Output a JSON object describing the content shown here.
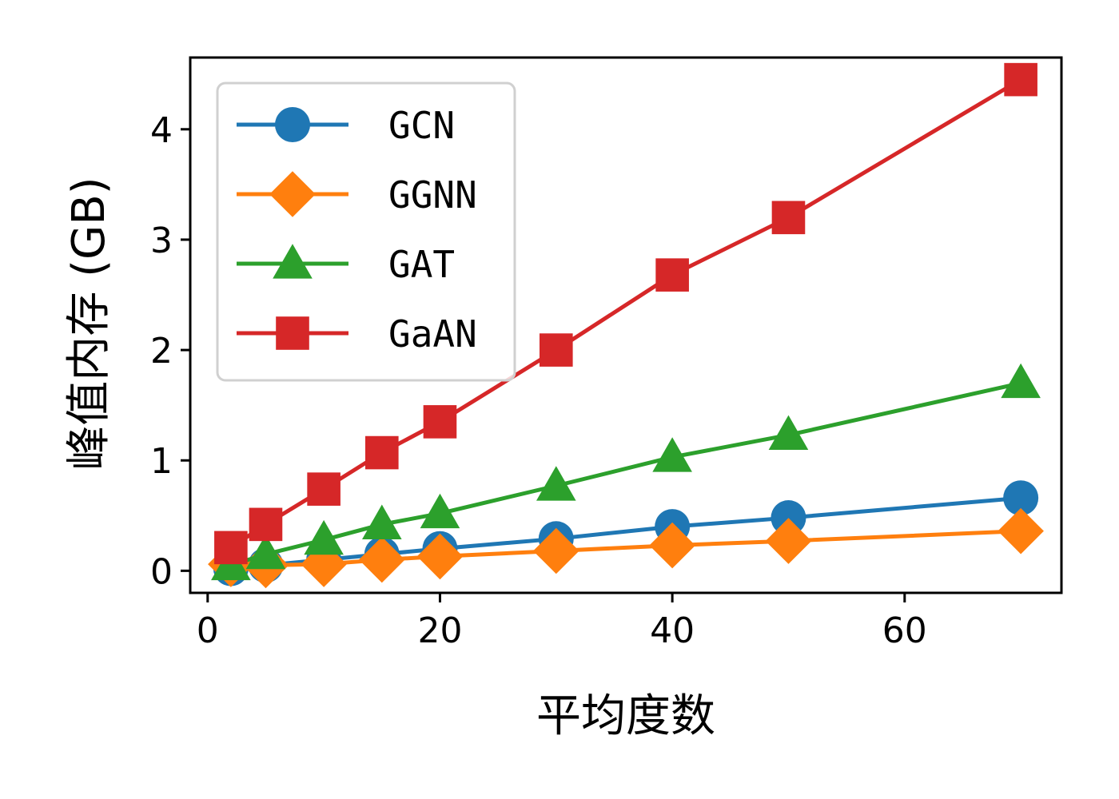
{
  "chart_data": {
    "type": "line",
    "xlabel": "平均度数",
    "ylabel": "峰值内存 (GB)",
    "xlim": [
      -1.5,
      73.5
    ],
    "ylim": [
      -0.2,
      4.65
    ],
    "xticks": [
      0,
      20,
      40,
      60
    ],
    "yticks": [
      0,
      1,
      2,
      3,
      4
    ],
    "grid": false,
    "legend_position": "top-left",
    "series": [
      {
        "name": "GCN",
        "color": "#1f77b4",
        "marker": "circle",
        "x": [
          2,
          5,
          10,
          15,
          20,
          30,
          40,
          50,
          70
        ],
        "y": [
          0.02,
          0.05,
          0.1,
          0.15,
          0.2,
          0.29,
          0.4,
          0.48,
          0.66
        ]
      },
      {
        "name": "GGNN",
        "color": "#ff7f0e",
        "marker": "diamond",
        "x": [
          2,
          5,
          10,
          15,
          20,
          30,
          40,
          50,
          70
        ],
        "y": [
          0.06,
          0.05,
          0.06,
          0.1,
          0.13,
          0.18,
          0.23,
          0.27,
          0.36
        ]
      },
      {
        "name": "GAT",
        "color": "#2ca02c",
        "marker": "triangle",
        "x": [
          2,
          5,
          10,
          15,
          20,
          30,
          40,
          50,
          70
        ],
        "y": [
          0.05,
          0.15,
          0.28,
          0.42,
          0.52,
          0.77,
          1.03,
          1.23,
          1.7
        ]
      },
      {
        "name": "GaAN",
        "color": "#d62728",
        "marker": "square",
        "x": [
          2,
          5,
          10,
          15,
          20,
          30,
          40,
          50,
          70
        ],
        "y": [
          0.21,
          0.42,
          0.74,
          1.07,
          1.35,
          2.0,
          2.68,
          3.2,
          4.45
        ]
      }
    ]
  }
}
